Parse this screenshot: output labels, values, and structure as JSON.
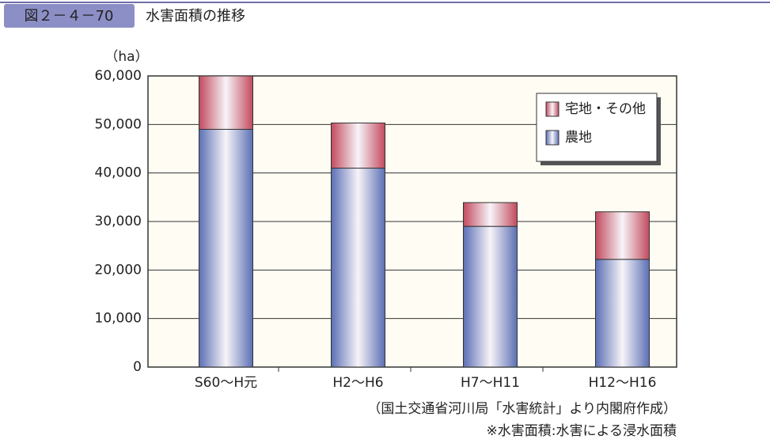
{
  "header": {
    "figure_no": "図２－４－70",
    "title": "水害面積の推移"
  },
  "chart_data": {
    "type": "stacked_bar",
    "y_unit": "（ha）",
    "categories": [
      "S60～H元",
      "H2～H6",
      "H7～H11",
      "H12～H16"
    ],
    "series": [
      {
        "name": "農地",
        "color": "#5b6fb4",
        "values": [
          49000,
          41000,
          29000,
          22200
        ]
      },
      {
        "name": "宅地・その他",
        "color": "#c24a5e",
        "values": [
          11000,
          9300,
          4900,
          9800
        ]
      }
    ],
    "ylim": [
      0,
      60000
    ],
    "yticks": [
      0,
      {
        "value": 10000,
        "label": "10,000"
      },
      {
        "value": 20000,
        "label": "20,000"
      },
      {
        "value": 30000,
        "label": "30,000"
      },
      {
        "value": 40000,
        "label": "40,000"
      },
      {
        "value": 50000,
        "label": "50,000"
      },
      {
        "value": 60000,
        "label": "60,000"
      }
    ],
    "grid": true,
    "legend_position": "upper right"
  },
  "notes": [
    "（国土交通省河川局「水害統計」より内閣府作成）",
    "※水害面積:水害による浸水面積"
  ]
}
